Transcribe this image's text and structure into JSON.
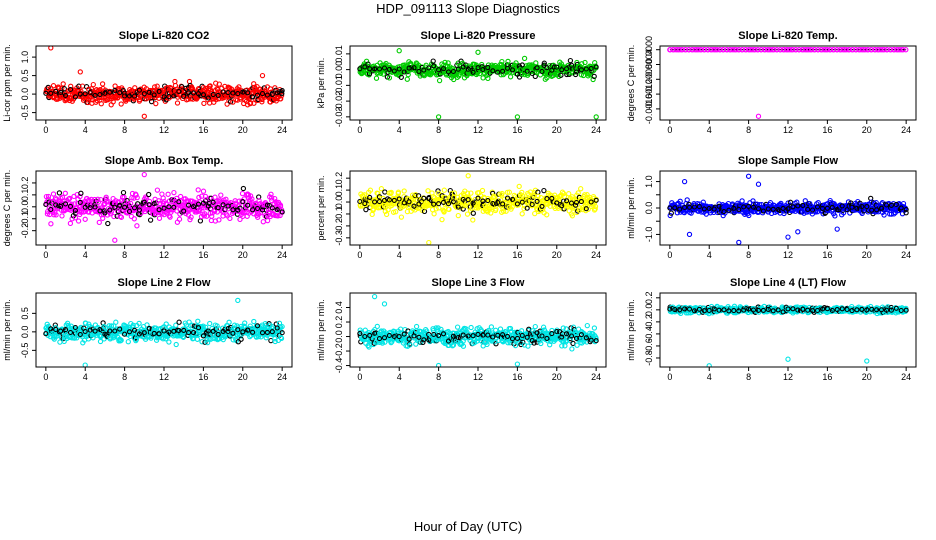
{
  "figure": {
    "title": "HDP_091113  Slope Diagnostics",
    "xlabel": "Hour of Day (UTC)"
  },
  "chart_data": [
    {
      "type": "scatter",
      "title": "Slope Li-820 CO2",
      "ylabel": "Li-cor ppm per min.",
      "xlim": [
        -1,
        25
      ],
      "ylim": [
        -0.7,
        1.3
      ],
      "xticks": [
        0,
        4,
        8,
        12,
        16,
        20,
        24
      ],
      "yticks": [
        -0.5,
        0,
        0.5,
        1
      ],
      "ytick_labels": [
        "-0.5",
        "0.0",
        "0.5",
        "1.0"
      ],
      "color": "#ff0000",
      "mean": 0,
      "spread": 0.2,
      "outliers": [
        [
          0.5,
          1.25
        ],
        [
          3.5,
          0.6
        ],
        [
          10,
          -0.6
        ],
        [
          22,
          0.5
        ]
      ]
    },
    {
      "type": "scatter",
      "title": "Slope Li-820 Pressure",
      "ylabel": "kPa per min.",
      "xlim": [
        -1,
        25
      ],
      "ylim": [
        -0.032,
        0.015
      ],
      "xticks": [
        0,
        4,
        8,
        12,
        16,
        20,
        24
      ],
      "yticks": [
        -0.03,
        -0.02,
        -0.01,
        0,
        0.01
      ],
      "ytick_labels": [
        "-0.03",
        "-0.02",
        "-0.01",
        "0.00",
        "0.01"
      ],
      "color": "#00cc00",
      "mean": 0,
      "spread": 0.004,
      "outliers": [
        [
          8,
          -0.03
        ],
        [
          16,
          -0.03
        ],
        [
          24,
          -0.03
        ],
        [
          4,
          0.012
        ],
        [
          12,
          0.011
        ]
      ]
    },
    {
      "type": "scatter",
      "title": "Slope Li-820 Temp.",
      "ylabel": "degrees C per min.",
      "xlim": [
        -1,
        25
      ],
      "ylim": [
        -0.0019,
        0.0001
      ],
      "xticks": [
        0,
        4,
        8,
        12,
        16,
        20,
        24
      ],
      "yticks": [
        -0.0016,
        -0.0012,
        -0.0008,
        -0.0004,
        0
      ],
      "ytick_labels": [
        "-0.0016",
        "-0.0012",
        "-0.0008",
        "-0.0004",
        "0.0000"
      ],
      "color": "#ff00ff",
      "mean": 0,
      "spread": 0,
      "line": true,
      "outliers": [
        [
          9,
          -0.0018
        ]
      ]
    },
    {
      "type": "scatter",
      "title": "Slope Amb. Box Temp.",
      "ylabel": "degrees C per min.",
      "xlim": [
        -1,
        25
      ],
      "ylim": [
        -0.32,
        0.3
      ],
      "xticks": [
        0,
        4,
        8,
        12,
        16,
        20,
        24
      ],
      "yticks": [
        -0.2,
        -0.1,
        0,
        0.1,
        0.2
      ],
      "ytick_labels": [
        "-0.2",
        "-0.1",
        "0.0",
        "0.1",
        "0.2"
      ],
      "color": "#ff00ff",
      "mean": 0,
      "spread": 0.09,
      "outliers": [
        [
          7,
          -0.28
        ],
        [
          10,
          0.27
        ]
      ]
    },
    {
      "type": "scatter",
      "title": "Slope Gas Stream RH",
      "ylabel": "percent per min.",
      "xlim": [
        -1,
        25
      ],
      "ylim": [
        -0.36,
        0.26
      ],
      "xticks": [
        0,
        4,
        8,
        12,
        16,
        20,
        24
      ],
      "yticks": [
        -0.3,
        -0.2,
        -0.1,
        0,
        0.1,
        0.2
      ],
      "ytick_labels": [
        "-0.3",
        "-0.2",
        "-0.1",
        "0.0",
        "0.1",
        "0.2"
      ],
      "color": "#ffff00",
      "mean": 0,
      "spread": 0.08,
      "outliers": [
        [
          7,
          -0.34
        ],
        [
          11,
          0.22
        ]
      ]
    },
    {
      "type": "scatter",
      "title": "Slope Sample Flow",
      "ylabel": "ml/min per min.",
      "xlim": [
        -1,
        25
      ],
      "ylim": [
        -1.4,
        1.4
      ],
      "xticks": [
        0,
        4,
        8,
        12,
        16,
        20,
        24
      ],
      "yticks": [
        -1,
        -0.5,
        0,
        0.5,
        1
      ],
      "ytick_labels": [
        "-1.0",
        "",
        "0.0",
        "",
        "1.0"
      ],
      "color": "#0000ff",
      "mean": 0,
      "spread": 0.18,
      "outliers": [
        [
          1.5,
          1.0
        ],
        [
          2,
          -1.0
        ],
        [
          7,
          -1.3
        ],
        [
          8,
          1.2
        ],
        [
          9,
          0.9
        ],
        [
          12,
          -1.1
        ],
        [
          13,
          -0.9
        ],
        [
          17,
          -0.8
        ]
      ]
    },
    {
      "type": "scatter",
      "title": "Slope Line 2 Flow",
      "ylabel": "ml/min per min.",
      "xlim": [
        -1,
        25
      ],
      "ylim": [
        -0.95,
        1.05
      ],
      "xticks": [
        0,
        4,
        8,
        12,
        16,
        20,
        24
      ],
      "yticks": [
        -0.5,
        0,
        0.5
      ],
      "ytick_labels": [
        "-0.5",
        "0.0",
        "0.5"
      ],
      "color": "#00e5e5",
      "mean": 0,
      "spread": 0.2,
      "outliers": [
        [
          4,
          -0.9
        ],
        [
          19.5,
          0.85
        ]
      ]
    },
    {
      "type": "scatter",
      "title": "Slope Line 3 Flow",
      "ylabel": "ml/min per min.",
      "xlim": [
        -1,
        25
      ],
      "ylim": [
        -0.42,
        0.6
      ],
      "xticks": [
        0,
        4,
        8,
        12,
        16,
        20,
        24
      ],
      "yticks": [
        -0.4,
        -0.2,
        0,
        0.2,
        0.4
      ],
      "ytick_labels": [
        "-0.4",
        "-0.2",
        "0.0",
        "0.2",
        "0.4"
      ],
      "color": "#00e5e5",
      "mean": 0,
      "spread": 0.1,
      "outliers": [
        [
          1.5,
          0.55
        ],
        [
          2.5,
          0.45
        ],
        [
          8,
          -0.4
        ],
        [
          16,
          -0.38
        ]
      ]
    },
    {
      "type": "scatter",
      "title": "Slope Line 4 (LT) Flow",
      "ylabel": "ml/min per min.",
      "xlim": [
        -1,
        25
      ],
      "ylim": [
        -0.95,
        0.28
      ],
      "xticks": [
        0,
        4,
        8,
        12,
        16,
        20,
        24
      ],
      "yticks": [
        -0.8,
        -0.6,
        -0.4,
        -0.2,
        0,
        0.2
      ],
      "ytick_labels": [
        "-0.8",
        "-0.6",
        "-0.4",
        "-0.2",
        "0.0",
        "0.2"
      ],
      "color": "#00e5e5",
      "mean": 0,
      "spread": 0.04,
      "outliers": [
        [
          4,
          -0.93
        ],
        [
          12,
          -0.82
        ],
        [
          20,
          -0.85
        ]
      ]
    }
  ]
}
